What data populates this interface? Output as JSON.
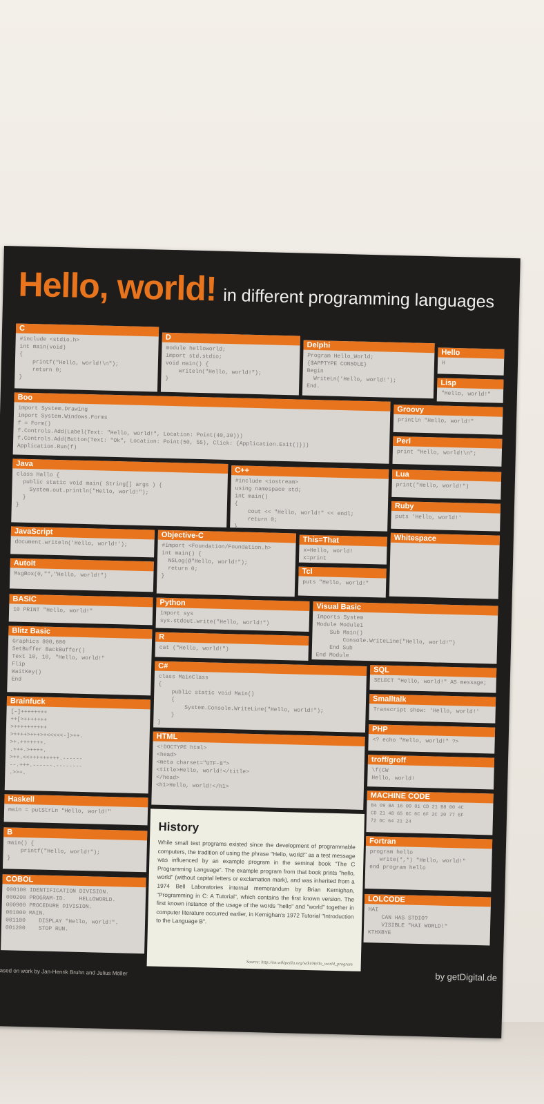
{
  "poster": {
    "title": "Hello, world!",
    "subtitle": "in different programming languages",
    "boxes": [
      {
        "title": "C",
        "code": "#include <stdio.h>\nint main(void)\n{\n    printf(\"Hello, world!\\n\");\n    return 0;\n}"
      },
      {
        "title": "D",
        "code": "module helloworld;\nimport std.stdio;\nvoid main() {\n    writeln(\"Hello, world!\");\n}"
      },
      {
        "title": "Delphi",
        "code": "Program Hello_World;\n{$APPTYPE CONSOLE}\nBegin\n  WriteLn('Hello, world!');\nEnd."
      },
      {
        "title": "Hello",
        "code": "H"
      },
      {
        "title": "Lisp",
        "code": "\"Hello, world!\""
      },
      {
        "title": "Boo",
        "code": "import System.Drawing\nimport System.Windows.Forms\nf = Form()\nf.Controls.Add(Label(Text: \"Hello, world!\", Location: Point(40,30)))\nf.Controls.Add(Button(Text: \"Ok\", Location: Point(50, 55), Click: {Application.Exit()}))\nApplication.Run(f)"
      },
      {
        "title": "Groovy",
        "code": "println \"Hello, world!\""
      },
      {
        "title": "Perl",
        "code": "print \"Hello, world!\\n\";"
      },
      {
        "title": "Java",
        "code": "class Hallo {\n  public static void main( String[] args ) {\n    System.out.println(\"Hello, world!\");\n  }\n}"
      },
      {
        "title": "C++",
        "code": "#include <iostream>\nusing namespace std;\nint main()\n{\n    cout << \"Hello, world!\" << endl;\n    return 0;\n}"
      },
      {
        "title": "Lua",
        "code": "print(\"Hello, world!\")"
      },
      {
        "title": "Ruby",
        "code": "puts 'Hello, world!'"
      },
      {
        "title": "JavaScript",
        "code": "document.writeln('Hello, world!');"
      },
      {
        "title": "Objective-C",
        "code": "#import <Foundation/Foundation.h>\nint main() {\n  NSLog(@\"Hello, world!\");\n  return 0;\n}"
      },
      {
        "title": "This=That",
        "code": "x=Hello, world!\nx=print"
      },
      {
        "title": "Whitespace",
        "code": ""
      },
      {
        "title": "AutoIt",
        "code": "MsgBox(0,\"\",\"Hello, world!\")"
      },
      {
        "title": "Tcl",
        "code": "puts \"Hello, world!\""
      },
      {
        "title": "BASIC",
        "code": "10 PRINT \"Hello, world!\""
      },
      {
        "title": "Python",
        "code": "import sys\nsys.stdout.write(\"Hello, world!\")"
      },
      {
        "title": "Visual Basic",
        "code": "Imports System\nModule Module1\n    Sub Main()\n        Console.WriteLine(\"Hello, world!\")\n    End Sub\nEnd Module"
      },
      {
        "title": "Blitz Basic",
        "code": "Graphics 800,600\nSetBuffer BackBuffer()\nText 10, 10, \"Hello, world!\"\nFlip\nWaitKey()\nEnd"
      },
      {
        "title": "R",
        "code": "cat (\"Hello, world!\")"
      },
      {
        "title": "C#",
        "code": "class MainClass\n{\n    public static void Main()\n    {\n        System.Console.WriteLine(\"Hello, world!\");\n    }\n}"
      },
      {
        "title": "SQL",
        "code": "SELECT \"Hello, world!\" AS message;"
      },
      {
        "title": "Brainfuck",
        "code": "[-]++++++++\n++[>+++++++\n>++++++++++\n>++++>+++>+<<<<<-]>++.\n>+.+++++++.\n.+++.>++++.\n>++.<<+++++++++.------\n--.+++.------.--------\n.>>+."
      },
      {
        "title": "Smalltalk",
        "code": "Transcript show: 'Hello, world!'"
      },
      {
        "title": "PHP",
        "code": "<? echo \"Hello, world!\" ?>"
      },
      {
        "title": "HTML",
        "code": "<!DOCTYPE html>\n<head>\n<meta charset=\"UTF-8\">\n<title>Hello, world!</title>\n</head>\n<h1>Hello, world!</h1>"
      },
      {
        "title": "troff/groff",
        "code": "\\f(CW\nHello, world!"
      },
      {
        "title": "Haskell",
        "code": "main = putStrLn \"Hello, world!\""
      },
      {
        "title": "MACHINE CODE",
        "code": "B4 09 BA 16 00 01 CD 21 B8 00 4C\nCD 21 48 65 6C 6C 6F 2C 20 77 6F\n72 6C 64 21 24"
      },
      {
        "title": "B",
        "code": "main() {\n    printf(\"Hello, world!\");\n}"
      },
      {
        "title": "Fortran",
        "code": "program hello\n   write(*,*) \"Hello, world!\"\nend program hello"
      },
      {
        "title": "COBOL",
        "code": "000100 IDENTIFICATION DIVISION.\n000200 PROGRAM-ID.    HELLOWORLD.\n000900 PROCEDURE DIVISION.\n001000 MAIN.\n001100    DISPLAY \"Hello, world!\".\n001200    STOP RUN."
      },
      {
        "title": "LOLCODE",
        "code": "HAI\n    CAN HAS STDIO?\n    VISIBLE \"HAI WORLD!\"\nKTHXBYE"
      }
    ],
    "history": {
      "title": "History",
      "text": "While small test programs existed since the development of programmable computers, the tradition of using the phrase \"Hello, world!\" as a test message was influenced by an example program in the seminal book \"The C Programming Language\". The example program from that book prints \"hello, world\" (without capital letters or exclamation mark), and was inherited from a 1974 Bell Laboratories internal memorandum by Brian Kernighan, \"Programming in C: A Tutorial\", which contains the first known version. The first known instance of the usage of the words \"hello\" and \"world\" together in computer literature occurred earlier, in Kernighan's 1972 Tutorial \"Introduction to the Language B\".",
      "source": "Source: http://en.wikipedia.org/wiki/Hello_world_program"
    },
    "footer_left": "Based on work by Jan-Henrik Bruhn and Julius Möller",
    "footer_right": "by getDigital.de",
    "colors": {
      "accent": "#e8751e",
      "poster_bg": "#1f1d1c",
      "box_bg": "#d9d6d2",
      "history_bg": "#efeee2"
    }
  }
}
